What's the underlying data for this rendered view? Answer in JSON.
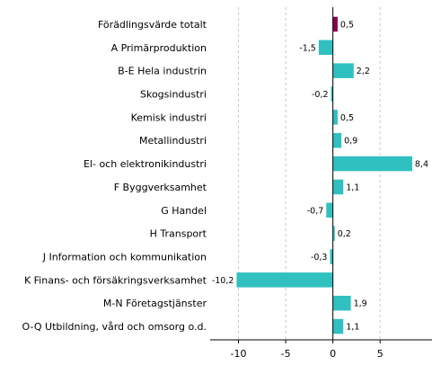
{
  "chart_data": {
    "type": "bar",
    "orientation": "horizontal",
    "categories": [
      "Förädlingsvärde totalt",
      "A Primärproduktion",
      "B-E Hela industrin",
      "Skogsindustri",
      "Kemisk industri",
      "Metallindustri",
      "El- och elektronikindustri",
      "F Byggverksamhet",
      "G Handel",
      "H Transport",
      "J Information och kommunikation",
      "K Finans- och försäkringsverksamhet",
      "M-N Företagstjänster",
      "O-Q Utbildning, vård och omsorg o.d."
    ],
    "values": [
      0.5,
      -1.5,
      2.2,
      -0.2,
      0.5,
      0.9,
      8.4,
      1.1,
      -0.7,
      0.2,
      -0.3,
      -10.2,
      1.9,
      1.1
    ],
    "value_labels": [
      "0,5",
      "-1,5",
      "2,2",
      "-0,2",
      "0,5",
      "0,9",
      "8,4",
      "1,1",
      "-0,7",
      "0,2",
      "-0,3",
      "-10,2",
      "1,9",
      "1,1"
    ],
    "xlim": [
      -13,
      10.5
    ],
    "xticks": [
      -10,
      -5,
      0,
      5
    ],
    "xtick_labels": [
      "-10",
      "-5",
      "0",
      "5"
    ],
    "grid": "vertical dashed",
    "colors": {
      "highlight": "#8b0051",
      "default": "#30c0c0"
    },
    "highlight_index": 0
  }
}
